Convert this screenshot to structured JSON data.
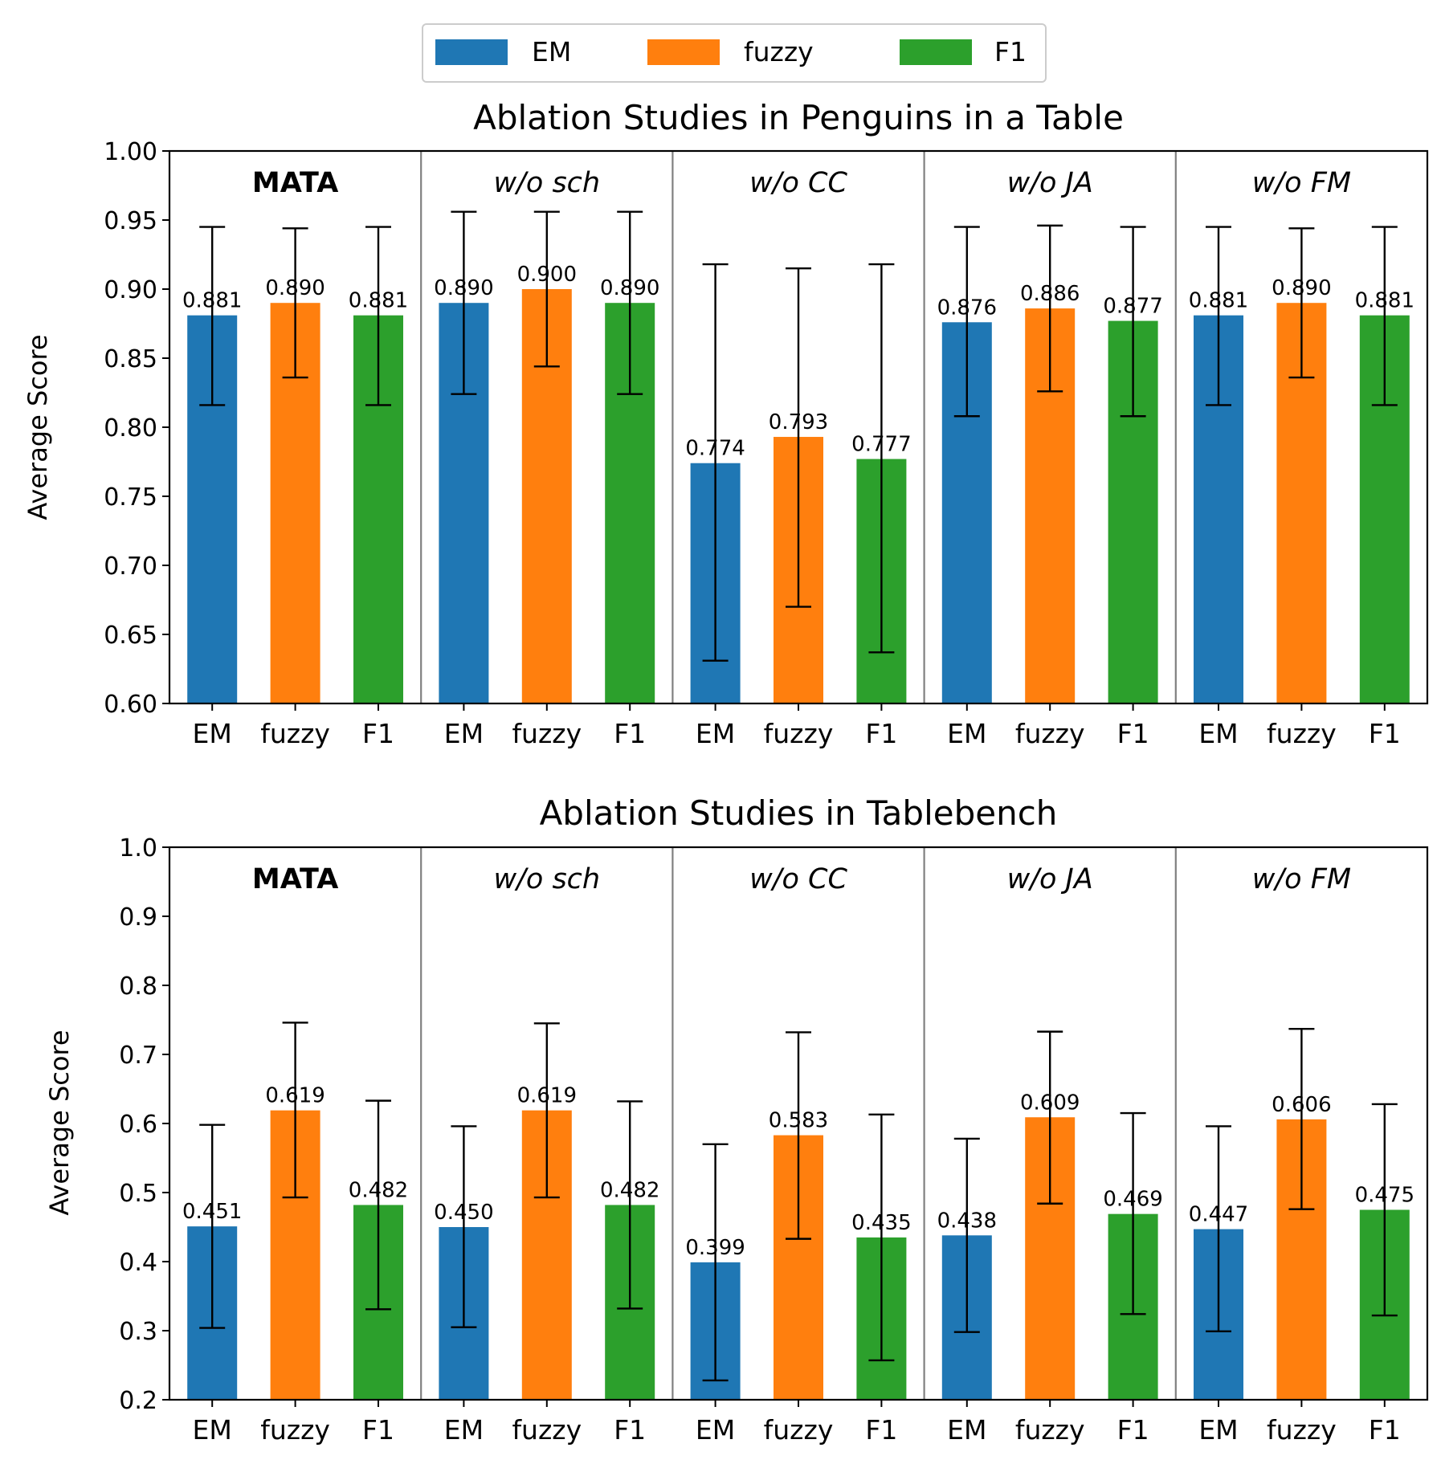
{
  "legend": {
    "items": [
      {
        "label": "EM",
        "color": "#1f77b4"
      },
      {
        "label": "fuzzy",
        "color": "#ff7f0e"
      },
      {
        "label": "F1",
        "color": "#2ca02c"
      }
    ]
  },
  "chart_data": [
    {
      "type": "bar",
      "title": "Ablation Studies in Penguins in a Table",
      "ylabel": "Average Score",
      "ylim": [
        0.6,
        1.0
      ],
      "yticks": [
        "0.60",
        "0.65",
        "0.70",
        "0.75",
        "0.80",
        "0.85",
        "0.90",
        "0.95",
        "1.00"
      ],
      "categories": [
        "EM",
        "fuzzy",
        "F1"
      ],
      "groups": [
        {
          "name": "MATA",
          "style": "bold",
          "values": [
            0.881,
            0.89,
            0.881
          ],
          "labels": [
            "0.881",
            "0.890",
            "0.881"
          ],
          "err_low": [
            0.816,
            0.836,
            0.816
          ],
          "err_high": [
            0.945,
            0.944,
            0.945
          ]
        },
        {
          "name": "w/o sch",
          "style": "italic",
          "values": [
            0.89,
            0.9,
            0.89
          ],
          "labels": [
            "0.890",
            "0.900",
            "0.890"
          ],
          "err_low": [
            0.824,
            0.844,
            0.824
          ],
          "err_high": [
            0.956,
            0.956,
            0.956
          ]
        },
        {
          "name": "w/o CC",
          "style": "italic",
          "values": [
            0.774,
            0.793,
            0.777
          ],
          "labels": [
            "0.774",
            "0.793",
            "0.777"
          ],
          "err_low": [
            0.631,
            0.67,
            0.637
          ],
          "err_high": [
            0.918,
            0.915,
            0.918
          ]
        },
        {
          "name": "w/o JA",
          "style": "italic",
          "values": [
            0.876,
            0.886,
            0.877
          ],
          "labels": [
            "0.876",
            "0.886",
            "0.877"
          ],
          "err_low": [
            0.808,
            0.826,
            0.808
          ],
          "err_high": [
            0.945,
            0.946,
            0.945
          ]
        },
        {
          "name": "w/o FM",
          "style": "italic",
          "values": [
            0.881,
            0.89,
            0.881
          ],
          "labels": [
            "0.881",
            "0.890",
            "0.881"
          ],
          "err_low": [
            0.816,
            0.836,
            0.816
          ],
          "err_high": [
            0.945,
            0.944,
            0.945
          ]
        }
      ]
    },
    {
      "type": "bar",
      "title": "Ablation Studies in Tablebench",
      "ylabel": "Average Score",
      "ylim": [
        0.2,
        1.0
      ],
      "yticks": [
        "0.2",
        "0.3",
        "0.4",
        "0.5",
        "0.6",
        "0.7",
        "0.8",
        "0.9",
        "1.0"
      ],
      "categories": [
        "EM",
        "fuzzy",
        "F1"
      ],
      "groups": [
        {
          "name": "MATA",
          "style": "bold",
          "values": [
            0.451,
            0.619,
            0.482
          ],
          "labels": [
            "0.451",
            "0.619",
            "0.482"
          ],
          "err_low": [
            0.304,
            0.493,
            0.331
          ],
          "err_high": [
            0.598,
            0.746,
            0.633
          ]
        },
        {
          "name": "w/o sch",
          "style": "italic",
          "values": [
            0.45,
            0.619,
            0.482
          ],
          "labels": [
            "0.450",
            "0.619",
            "0.482"
          ],
          "err_low": [
            0.305,
            0.493,
            0.332
          ],
          "err_high": [
            0.596,
            0.745,
            0.632
          ]
        },
        {
          "name": "w/o CC",
          "style": "italic",
          "values": [
            0.399,
            0.583,
            0.435
          ],
          "labels": [
            "0.399",
            "0.583",
            "0.435"
          ],
          "err_low": [
            0.228,
            0.433,
            0.257
          ],
          "err_high": [
            0.57,
            0.732,
            0.613
          ]
        },
        {
          "name": "w/o JA",
          "style": "italic",
          "values": [
            0.438,
            0.609,
            0.469
          ],
          "labels": [
            "0.438",
            "0.609",
            "0.469"
          ],
          "err_low": [
            0.298,
            0.484,
            0.324
          ],
          "err_high": [
            0.578,
            0.733,
            0.615
          ]
        },
        {
          "name": "w/o FM",
          "style": "italic",
          "values": [
            0.447,
            0.606,
            0.475
          ],
          "labels": [
            "0.447",
            "0.606",
            "0.475"
          ],
          "err_low": [
            0.299,
            0.476,
            0.322
          ],
          "err_high": [
            0.596,
            0.737,
            0.628
          ]
        }
      ]
    }
  ]
}
